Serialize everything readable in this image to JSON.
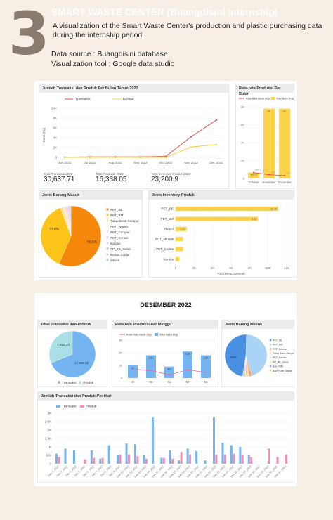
{
  "header": {
    "number": "3",
    "title": "SMART WASTE CENTER (Buangdisini Internship)",
    "description": "A visualization of the Smart Waste Center's production and plastic purchasing data during the internship period.",
    "source": "Data source : Buangdisini database",
    "tool": "Visualization tool : Google data studio"
  },
  "colors": {
    "transaksi": "#e74c3c",
    "produk": "#f7c948",
    "bar_yellow": "#fdd24a",
    "blue": "#74b4f0",
    "pink": "#f48fb1"
  },
  "dashboard1": {
    "monthly": {
      "title": "Jumlah Transaksi dan Produk Per Bulan Tahun 2022",
      "legend": [
        "Transaksi",
        "Produk"
      ],
      "ylabel": "Berat (Kg)",
      "yticks": [
        "0",
        "2K",
        "4K",
        "6K",
        "8K",
        "10K"
      ],
      "xticks": [
        "Jun 2022",
        "Jul 2022",
        "Aug 2022",
        "Sep 2022",
        "Oct 2022",
        "Nov 2022",
        "Dec 2022"
      ]
    },
    "kpis": [
      {
        "label": "Total Transaksi 2022",
        "value": "30,637.71"
      },
      {
        "label": "Total Produksi 2022",
        "value": "16,338.05"
      },
      {
        "label": "Total Inventory Produk 2022",
        "value": "23,200.9"
      }
    ],
    "avg_prod": {
      "title": "Rata-rata Produksi Per Bulan",
      "legend": [
        "Rata-Rata Berat (Kg)",
        "Total Berat (Kg)"
      ],
      "yticks": [
        "0",
        "2K",
        "4K",
        "6K",
        "8K"
      ],
      "categories": [
        "October",
        "November",
        "December"
      ],
      "bar_labels": [
        "652.3",
        "8K",
        "8K"
      ],
      "line_labels": [
        "652.3",
        "420",
        "322.2"
      ]
    },
    "jenis_barang": {
      "title": "Jenis Barang Masuk",
      "slice_labels": [
        "56.5%",
        "37.8%"
      ],
      "legend": [
        "PET_BE",
        "PET_BM",
        "Tutup Botol Campur",
        "PET_Warna",
        "PET_Campur",
        "PET_Kertas",
        "Kardus",
        "PP_BE_Gelas",
        "Kertas Coklat",
        "others"
      ]
    },
    "inventory": {
      "title": "Jenis Inventory Produk",
      "categories": [
        "PET_BE",
        "PET_BM",
        "Reject",
        "PET_Minyak",
        "PET_Kertas",
        "Kardus"
      ],
      "bar_labels": [
        "11.1K",
        "8.9K",
        "1.2K",
        "",
        "",
        ""
      ],
      "xticks": [
        "0",
        "2K",
        "4K",
        "6K",
        "8K",
        "10K",
        "12K"
      ],
      "xlabel": "Total Berat Sampah"
    }
  },
  "dashboard2": {
    "title": "DESEMBER 2022",
    "total_pie": {
      "title": "Total Transaksi dan Produk",
      "labels": [
        "7,983.43",
        "17,519.95"
      ],
      "legend": [
        "Transaksi",
        "Produk"
      ]
    },
    "weekly": {
      "title": "Rata-rata Produksi Per Minggu",
      "legend": [
        "Rata-Rata Berat (Kg)",
        "Total Berat (Kg)"
      ],
      "categories": [
        "49",
        "50",
        "51",
        "52",
        "53"
      ],
      "bar_labels": [
        "1K",
        "1.8K",
        "907",
        "2.1K",
        "1.8K"
      ],
      "yticks": [
        "0",
        "1K",
        "2K",
        "3K"
      ]
    },
    "jenis_barang": {
      "title": "Jenis Barang Masuk",
      "slice_labels": [
        "48%"
      ],
      "legend": [
        "PET_BE",
        "PET_BM",
        "PET_Warna",
        "Tutup Botol Campur",
        "PET_Kertas",
        "PP_BE_Gelas",
        "Box Putih",
        "Blue Putih Tetpah"
      ]
    },
    "daily": {
      "title": "Jumlah Transaksi dan Produk Per Hari",
      "legend": [
        "Transaksi",
        "Produk"
      ],
      "yticks": [
        "0",
        "500",
        "1K",
        "1.5K",
        "2K",
        "2.5K",
        "3K"
      ],
      "xticks": [
        "Dec 1, 2022",
        "Dec 2, 2022",
        "Dec 3, 2022",
        "Dec 5, 2022",
        "Dec 6, 2022",
        "Dec 7, 2022",
        "Dec 8, 2022",
        "Dec 9, 2022",
        "Dec 10, 2022",
        "Dec 12, 2022",
        "Dec 13, 2022",
        "Dec 14, 2022",
        "Dec 15, 2022",
        "Dec 16, 2022",
        "Dec 17, 2022",
        "Dec 19, 2022",
        "Dec 20, 2022",
        "Dec 21, 2022",
        "Dec 22, 2022",
        "Dec 23, 2022",
        "Dec 24, 2022",
        "Dec 26, 2022",
        "Dec 27, 2022",
        "Dec 28, 2022",
        "Dec 29, 2022",
        "Dec 30, 2022",
        "Dec 31, 2022"
      ]
    }
  },
  "chart_data": [
    {
      "type": "line",
      "title": "Jumlah Transaksi dan Produk Per Bulan Tahun 2022",
      "ylabel": "Berat (Kg)",
      "x": [
        "Jun 2022",
        "Jul 2022",
        "Aug 2022",
        "Sep 2022",
        "Oct 2022",
        "Nov 2022",
        "Dec 2022"
      ],
      "series": [
        {
          "name": "Transaksi",
          "values": [
            50,
            100,
            100,
            100,
            200,
            4200,
            7600
          ]
        },
        {
          "name": "Produk",
          "values": [
            0,
            0,
            0,
            0,
            0,
            2100,
            2600
          ]
        }
      ],
      "ylim": [
        0,
        10000
      ]
    },
    {
      "type": "bar",
      "title": "Rata-rata Produksi Per Bulan",
      "categories": [
        "October",
        "November",
        "December"
      ],
      "series": [
        {
          "name": "Total Berat (Kg)",
          "values": [
            652.3,
            7800,
            7800
          ]
        },
        {
          "name": "Rata-Rata Berat (Kg)",
          "values": [
            652.3,
            420,
            322.2
          ]
        }
      ],
      "ylim": [
        0,
        8000
      ]
    },
    {
      "type": "pie",
      "title": "Jenis Barang Masuk",
      "labels": [
        "PET_BE",
        "PET_BM",
        "Tutup Botol Campur",
        "PET_Warna",
        "PET_Campur",
        "PET_Kertas",
        "Kardus",
        "PP_BE_Gelas",
        "Kertas Coklat",
        "others"
      ],
      "values": [
        56.5,
        37.8,
        1.5,
        1.2,
        0.8,
        0.6,
        0.5,
        0.4,
        0.4,
        0.3
      ]
    },
    {
      "type": "bar",
      "title": "Jenis Inventory Produk",
      "categories": [
        "PET_BE",
        "PET_BM",
        "Reject",
        "PET_Minyak",
        "PET_Kertas",
        "Kardus"
      ],
      "values": [
        11100,
        8900,
        1200,
        800,
        800,
        400
      ],
      "xlabel": "Total Berat Sampah",
      "xlim": [
        0,
        12000
      ]
    },
    {
      "type": "pie",
      "title": "Total Transaksi dan Produk",
      "labels": [
        "Transaksi",
        "Produk"
      ],
      "values": [
        7983.43,
        17519.95
      ]
    },
    {
      "type": "bar",
      "title": "Rata-rata Produksi Per Minggu",
      "categories": [
        "49",
        "50",
        "51",
        "52",
        "53"
      ],
      "series": [
        {
          "name": "Total Berat (Kg)",
          "values": [
            1000,
            1800,
            907,
            2100,
            1800
          ]
        },
        {
          "name": "Rata-Rata Berat (Kg)",
          "values": [
            700,
            600,
            250,
            650,
            450
          ]
        }
      ],
      "ylim": [
        0,
        3000
      ]
    },
    {
      "type": "pie",
      "title": "Jenis Barang Masuk",
      "labels": [
        "PET_BE",
        "PET_BM",
        "PET_Warna",
        "Tutup Botol Campur",
        "PET_Kertas",
        "PP_BE_Gelas",
        "Box Putih",
        "Blue Putih Tetpah"
      ],
      "values": [
        48,
        45,
        2,
        1.5,
        1.2,
        1,
        0.8,
        0.5
      ]
    },
    {
      "type": "bar",
      "title": "Jumlah Transaksi dan Produk Per Hari",
      "categories": [
        "Dec 1, 2022",
        "Dec 2, 2022",
        "Dec 3, 2022",
        "Dec 5, 2022",
        "Dec 6, 2022",
        "Dec 7, 2022",
        "Dec 8, 2022",
        "Dec 9, 2022",
        "Dec 10, 2022",
        "Dec 12, 2022",
        "Dec 13, 2022",
        "Dec 14, 2022",
        "Dec 15, 2022",
        "Dec 16, 2022",
        "Dec 17, 2022",
        "Dec 19, 2022",
        "Dec 20, 2022",
        "Dec 21, 2022",
        "Dec 22, 2022",
        "Dec 23, 2022",
        "Dec 24, 2022",
        "Dec 26, 2022",
        "Dec 27, 2022",
        "Dec 28, 2022",
        "Dec 29, 2022",
        "Dec 30, 2022",
        "Dec 31, 2022"
      ],
      "series": [
        {
          "name": "Transaksi",
          "values": [
            600,
            900,
            800,
            0,
            800,
            300,
            1100,
            500,
            1200,
            1150,
            500,
            2750,
            350,
            800,
            200,
            900,
            750,
            200,
            2750,
            1250,
            1100,
            1000,
            500,
            0,
            0,
            0,
            0
          ]
        },
        {
          "name": "Produk",
          "values": [
            400,
            0,
            0,
            250,
            350,
            350,
            0,
            550,
            550,
            450,
            300,
            0,
            350,
            300,
            700,
            550,
            0,
            0,
            550,
            550,
            600,
            500,
            400,
            0,
            900,
            400,
            550
          ]
        }
      ],
      "ylim": [
        0,
        3000
      ]
    }
  ]
}
